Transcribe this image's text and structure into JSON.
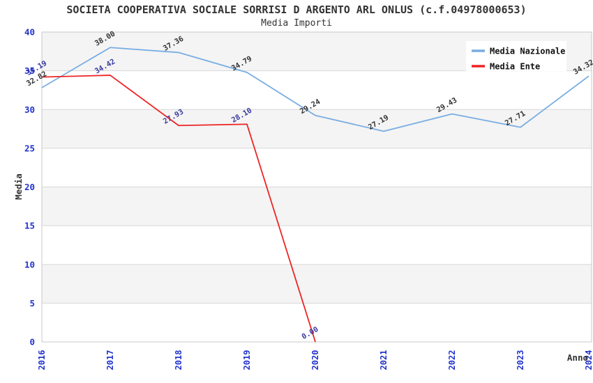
{
  "chart_data": {
    "type": "line",
    "title": "SOCIETA COOPERATIVA SOCIALE SORRISI D ARGENTO ARL ONLUS (c.f.04978000653)",
    "subtitle": "Media Importi",
    "xlabel": "Anno",
    "ylabel": "Media",
    "categories": [
      "2016",
      "2017",
      "2018",
      "2019",
      "2020",
      "2021",
      "2022",
      "2023",
      "2024"
    ],
    "series": [
      {
        "name": "Media Nazionale",
        "color": "#7badе2",
        "line_color": "#78ade2",
        "label_color": "#333333",
        "values": [
          32.82,
          38.0,
          37.36,
          34.79,
          29.24,
          27.19,
          29.43,
          27.71,
          34.32
        ]
      },
      {
        "name": "Media Ente",
        "color": "#ed2424",
        "line_color": "#ed2424",
        "label_color": "#3a3aa0",
        "values": [
          34.19,
          34.42,
          27.93,
          28.1,
          0.0
        ]
      }
    ],
    "ylim": [
      0,
      40
    ],
    "ytick_step": 5,
    "yticks": [
      0,
      5,
      10,
      15,
      20,
      25,
      30,
      35,
      40
    ],
    "grid": true,
    "legend": {
      "position": "top-right",
      "entries": [
        "Media Nazionale",
        "Media Ente"
      ]
    },
    "styles": {
      "band_gray": "#f4f4f4",
      "band_white": "#ffffff",
      "grid_color": "#d8d8d8",
      "border_color": "#c8c8c8",
      "tick_label_color": "#2233cc",
      "axis_title_color": "#333333",
      "title_color": "#333333",
      "legend_bg": "#ffffff"
    }
  }
}
